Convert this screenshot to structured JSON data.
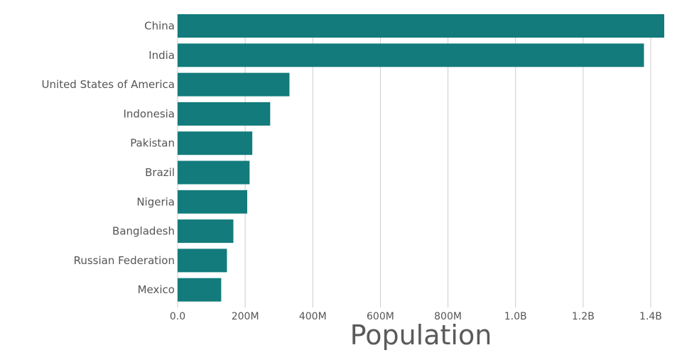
{
  "chart_data": {
    "type": "bar",
    "orientation": "horizontal",
    "categories": [
      "China",
      "India",
      "United States of America",
      "Indonesia",
      "Pakistan",
      "Brazil",
      "Nigeria",
      "Bangladesh",
      "Russian Federation",
      "Mexico"
    ],
    "values": [
      1440000000,
      1380000000,
      331000000,
      274000000,
      221000000,
      213000000,
      206000000,
      165000000,
      146000000,
      129000000
    ],
    "xlabel": "Population",
    "ylabel": "",
    "xlim": [
      0,
      1440000000
    ],
    "xticks": [
      0,
      200000000,
      400000000,
      600000000,
      800000000,
      1000000000,
      1200000000,
      1400000000
    ],
    "xtick_labels": [
      "0.0",
      "200M",
      "400M",
      "600M",
      "800M",
      "1.0B",
      "1.2B",
      "1.4B"
    ],
    "grid": true,
    "bar_color": "#137b7b"
  }
}
